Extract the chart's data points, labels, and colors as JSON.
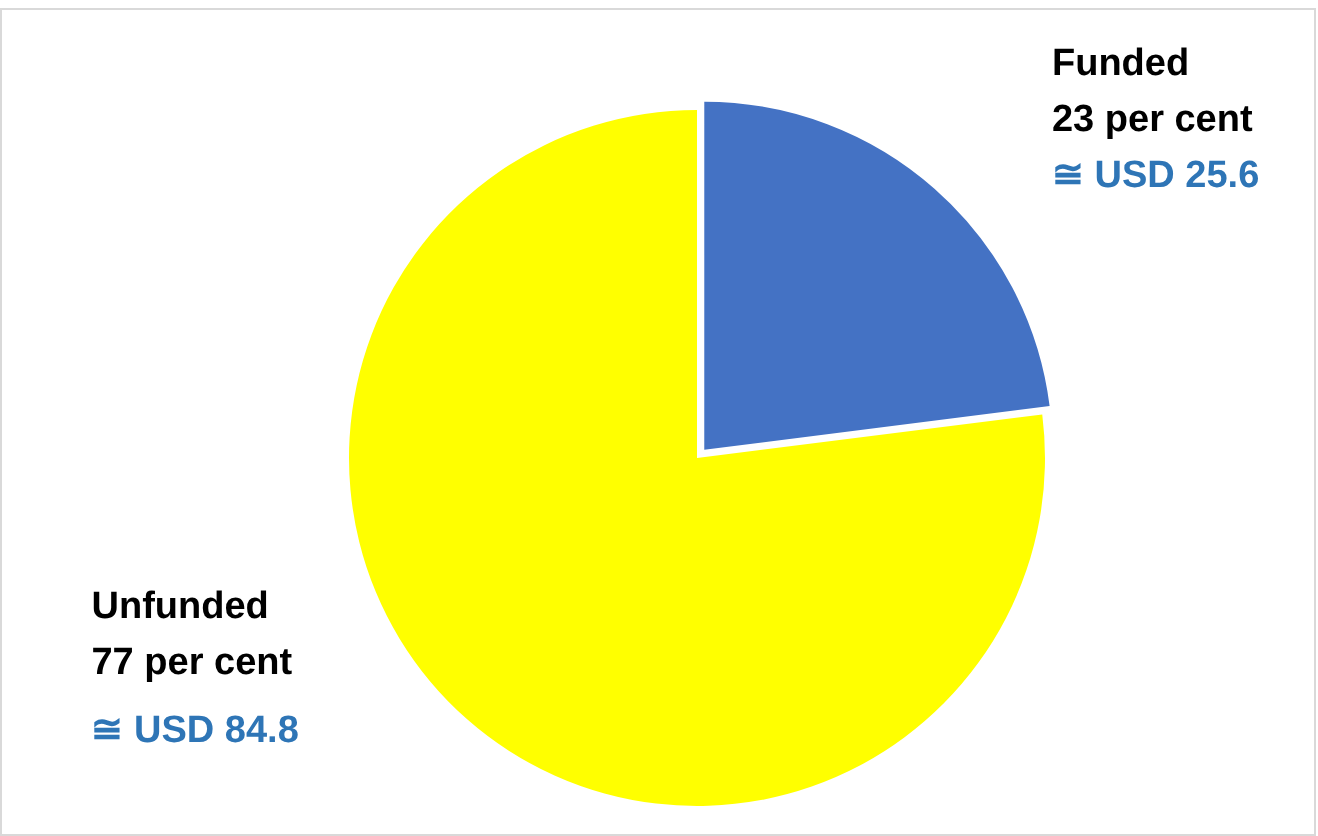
{
  "chart_data": {
    "type": "pie",
    "categories": [
      "Funded",
      "Unfunded"
    ],
    "values": [
      23,
      77
    ],
    "colors": [
      "#4472c4",
      "#ffff00"
    ],
    "value_labels": [
      "23 per cent",
      "77 per cent"
    ],
    "annotations": [
      {
        "text": "≅ USD 25.6",
        "x": "Funded"
      },
      {
        "text": "≅ USD 84.8",
        "x": "Unfunded"
      }
    ],
    "legend": false
  }
}
